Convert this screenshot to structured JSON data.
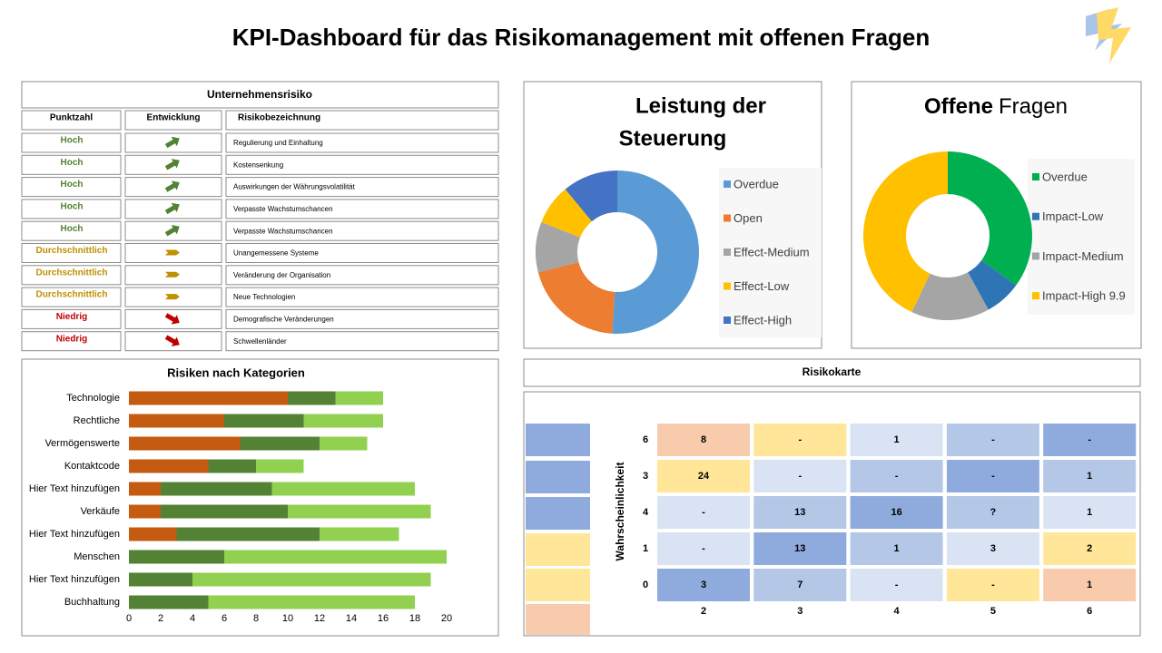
{
  "title": "KPI-Dashboard für das Risikomanagement mit offenen Fragen",
  "risk_table": {
    "title": "Unternehmensrisiko",
    "columns": [
      "Punktzahl",
      "Entwicklung",
      "Risikobezeichnung"
    ],
    "rows": [
      {
        "score": "Hoch",
        "trend": "up",
        "color": "#548235",
        "name": "Regulierung und Einhaltung"
      },
      {
        "score": "Hoch",
        "trend": "up",
        "color": "#548235",
        "name": "Kostensenkung"
      },
      {
        "score": "Hoch",
        "trend": "up",
        "color": "#548235",
        "name": "Auswirkungen der Währungsvolatilität"
      },
      {
        "score": "Hoch",
        "trend": "up",
        "color": "#548235",
        "name": "Verpasste Wachstumschancen"
      },
      {
        "score": "Hoch",
        "trend": "up",
        "color": "#548235",
        "name": "Verpasste Wachstumschancen"
      },
      {
        "score": "Durchschnittlich",
        "trend": "right",
        "color": "#bf9000",
        "name": "Unangemessene Systeme"
      },
      {
        "score": "Durchschnittlich",
        "trend": "right",
        "color": "#bf9000",
        "name": "Veränderung der Organisation"
      },
      {
        "score": "Durchschnittlich",
        "trend": "right",
        "color": "#bf9000",
        "name": "Neue Technologien"
      },
      {
        "score": "Niedrig",
        "trend": "down",
        "color": "#c00000",
        "name": "Demografische Veränderungen"
      },
      {
        "score": "Niedrig",
        "trend": "down",
        "color": "#c00000",
        "name": "Schwellenländer"
      }
    ]
  },
  "chart_data": [
    {
      "type": "donut",
      "title_lines": [
        "Leistung der",
        "Steuerung"
      ],
      "categories": [
        "Overdue",
        "Open",
        "Effect-Medium",
        "Effect-Low",
        "Effect-High"
      ],
      "values": [
        51,
        20,
        10,
        8,
        11
      ],
      "colors": [
        "#5b9bd5",
        "#ed7d31",
        "#a5a5a5",
        "#ffc000",
        "#4472c4"
      ],
      "legend": "right"
    },
    {
      "type": "donut",
      "title_parts": [
        "Offene",
        "Fragen"
      ],
      "categories": [
        "Overdue",
        "Impact-Low",
        "Impact-Medium",
        "Impact-High 9.9"
      ],
      "values": [
        35,
        7,
        15,
        43
      ],
      "colors": [
        "#00b050",
        "#2e75b6",
        "#a5a5a5",
        "#ffc000"
      ],
      "legend": "right"
    },
    {
      "type": "stacked-hbar",
      "title": "Risiken nach Kategorien",
      "categories": [
        "Technologie",
        "Rechtliche",
        "Vermögenswerte",
        "Kontaktcode",
        "Hier Text hinzufügen",
        "Verkäufe",
        "Hier Text hinzufügen",
        "Menschen",
        "Hier Text hinzufügen",
        "Buchhaltung"
      ],
      "series": [
        {
          "color": "#c55a11",
          "values": [
            10,
            6,
            7,
            5,
            2,
            2,
            3,
            0,
            0,
            0
          ]
        },
        {
          "color": "#548235",
          "values": [
            3,
            5,
            5,
            3,
            7,
            8,
            9,
            6,
            4,
            5
          ]
        },
        {
          "color": "#92d050",
          "values": [
            3,
            5,
            3,
            3,
            9,
            9,
            5,
            14,
            15,
            13
          ]
        }
      ],
      "xlim": [
        0,
        20
      ],
      "xticks": [
        0,
        2,
        4,
        6,
        8,
        10,
        12,
        14,
        16,
        18,
        20
      ],
      "grid": false
    },
    {
      "type": "heatmap",
      "title": "Risikokarte",
      "ylabel": "Wahrscheinlichkeit",
      "x_categories": [
        2,
        3,
        4,
        5,
        6
      ],
      "y_categories": [
        6,
        3,
        4,
        1,
        0
      ],
      "cells": [
        [
          "8",
          "-",
          "1",
          "-",
          "-"
        ],
        [
          "24",
          "-",
          "-",
          "-",
          "1"
        ],
        [
          "-",
          "13",
          "16",
          "?",
          "1"
        ],
        [
          "-",
          "13",
          "1",
          "3",
          "2"
        ],
        [
          "3",
          "7",
          "-",
          "-",
          "1"
        ]
      ],
      "colors": [
        [
          "#f8cbad",
          "#ffe699",
          "#dae3f3",
          "#b4c7e7",
          "#8faadc"
        ],
        [
          "#ffe699",
          "#dae3f3",
          "#b4c7e7",
          "#8faadc",
          "#b4c7e7"
        ],
        [
          "#dae3f3",
          "#b4c7e7",
          "#8faadc",
          "#b4c7e7",
          "#dae3f3"
        ],
        [
          "#dae3f3",
          "#8faadc",
          "#b4c7e7",
          "#dae3f3",
          "#ffe699"
        ],
        [
          "#8faadc",
          "#b4c7e7",
          "#dae3f3",
          "#ffe699",
          "#f8cbad"
        ]
      ]
    }
  ]
}
